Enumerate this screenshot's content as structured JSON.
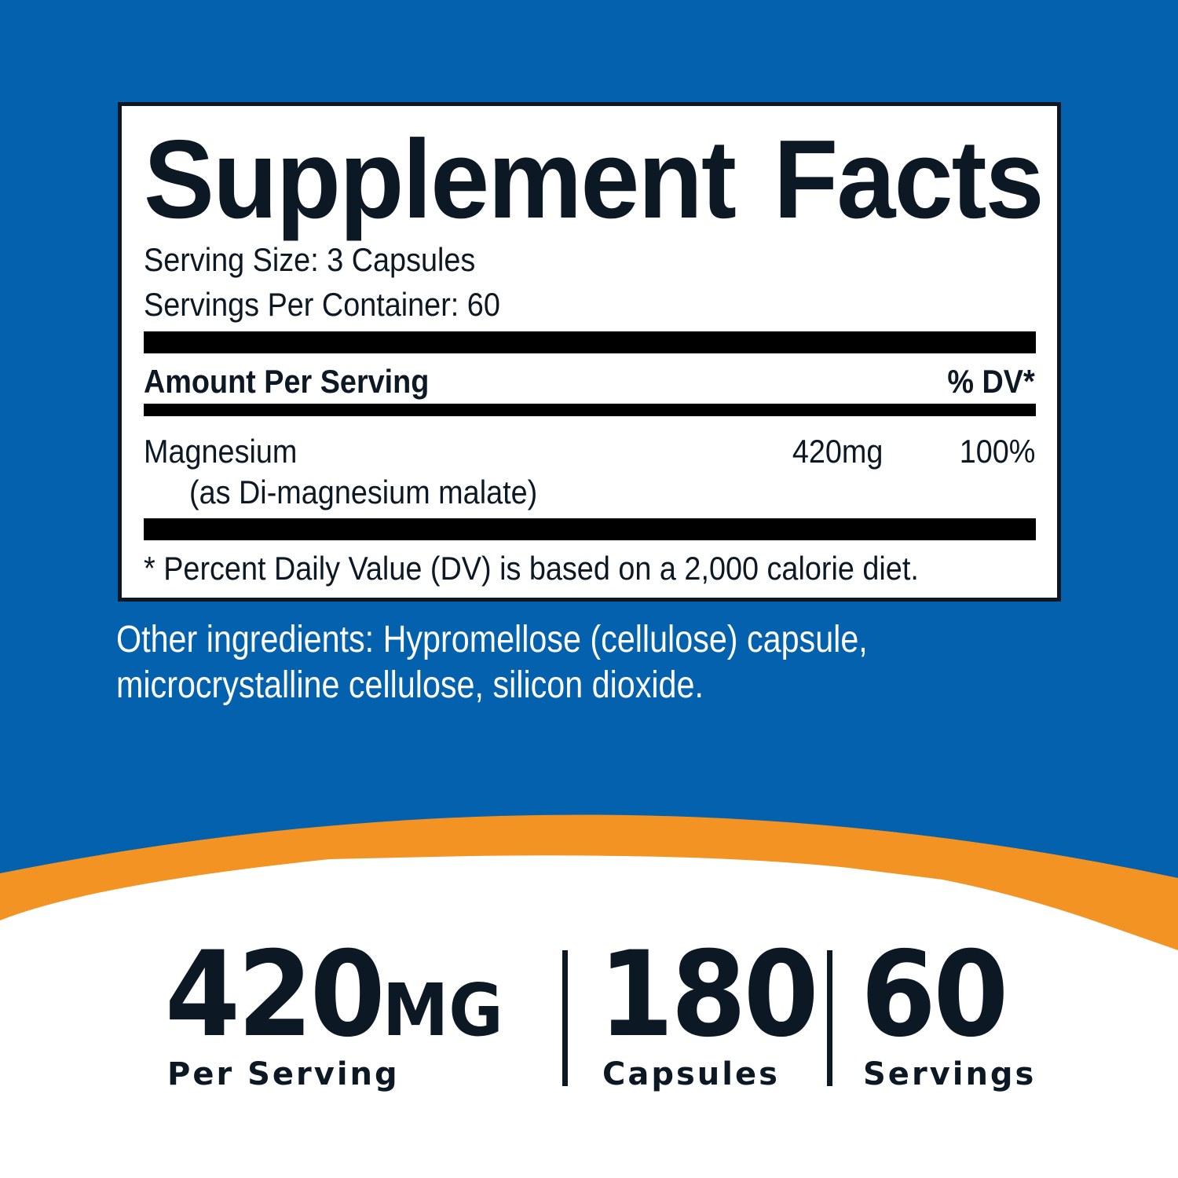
{
  "colors": {
    "background_blue": "#0361ad",
    "accent_orange": "#f39323",
    "text_dark": "#0c1824",
    "white": "#ffffff"
  },
  "label": {
    "title": "Supplement Facts",
    "serving_size": "Serving Size: 3 Capsules",
    "servings_per_container": "Servings Per Container: 60",
    "amount_header": "Amount Per Serving",
    "dv_header": "% DV*",
    "nutrient": {
      "name": "Magnesium",
      "source": "(as Di-magnesium malate)",
      "amount": "420mg",
      "dv": "100%"
    },
    "footnote": "* Percent Daily Value (DV) is based on a 2,000 calorie diet."
  },
  "other_ingredients": {
    "line1": "Other ingredients: Hypromellose (cellulose) capsule,",
    "line2": "microcrystalline cellulose, silicon dioxide."
  },
  "stats": [
    {
      "value": "420",
      "unit": "MG",
      "label": "Per Serving"
    },
    {
      "value": "180",
      "label": "Capsules"
    },
    {
      "value": "60",
      "label": "Servings"
    }
  ]
}
